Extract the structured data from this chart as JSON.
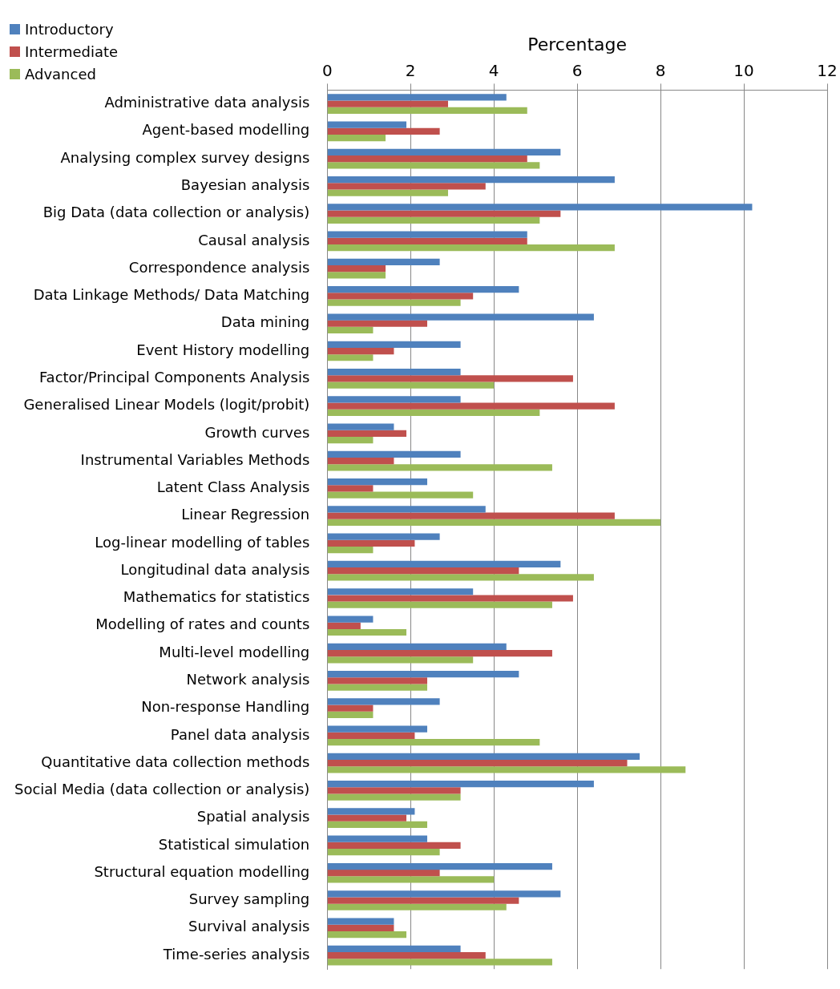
{
  "chart_data": {
    "type": "bar",
    "orientation": "horizontal",
    "xlabel": "Percentage",
    "legend": "top left",
    "grid": "x",
    "categories": [
      "Administrative data analysis",
      "Agent-based modelling",
      "Analysing complex survey designs",
      "Bayesian analysis",
      "Big Data (data collection or analysis)",
      "Causal analysis",
      "Correspondence analysis",
      "Data Linkage Methods/ Data Matching",
      "Data mining",
      "Event History modelling",
      "Factor/Principal Components Analysis",
      "Generalised Linear Models (logit/probit)",
      "Growth curves",
      "Instrumental Variables Methods",
      "Latent Class Analysis",
      "Linear Regression",
      "Log-linear modelling of tables",
      "Longitudinal data analysis",
      "Mathematics for statistics",
      "Modelling of rates and counts",
      "Multi-level modelling",
      "Network analysis",
      "Non-response Handling",
      "Panel data analysis",
      "Quantitative data collection methods",
      "Social Media (data collection or analysis)",
      "Spatial analysis",
      "Statistical simulation",
      "Structural equation modelling",
      "Survey sampling",
      "Survival analysis",
      "Time-series analysis"
    ],
    "series": [
      {
        "name": "Introductory",
        "color": "#4f81bd",
        "values": [
          4.3,
          1.9,
          5.6,
          6.9,
          10.2,
          4.8,
          2.7,
          4.6,
          6.4,
          3.2,
          3.2,
          3.2,
          1.6,
          3.2,
          2.4,
          3.8,
          2.7,
          5.6,
          3.5,
          1.1,
          4.3,
          4.6,
          2.7,
          2.4,
          7.5,
          6.4,
          2.1,
          2.4,
          5.4,
          5.6,
          1.6,
          3.2
        ]
      },
      {
        "name": "Intermediate",
        "color": "#c0504d",
        "values": [
          2.9,
          2.7,
          4.8,
          3.8,
          5.6,
          4.8,
          1.4,
          3.5,
          2.4,
          1.6,
          5.9,
          6.9,
          1.9,
          1.6,
          1.1,
          6.9,
          2.1,
          4.6,
          5.9,
          0.8,
          5.4,
          2.4,
          1.1,
          2.1,
          7.2,
          3.2,
          1.9,
          3.2,
          2.7,
          4.6,
          1.6,
          3.8
        ]
      },
      {
        "name": "Advanced",
        "color": "#9bbb59",
        "values": [
          4.8,
          1.4,
          5.1,
          2.9,
          5.1,
          6.9,
          1.4,
          3.2,
          1.1,
          1.1,
          4.0,
          5.1,
          1.1,
          5.4,
          3.5,
          8.0,
          1.1,
          6.4,
          5.4,
          1.9,
          3.5,
          2.4,
          1.1,
          5.1,
          8.6,
          3.2,
          2.4,
          2.7,
          4.0,
          4.3,
          1.9,
          5.4
        ]
      }
    ],
    "xlim": [
      0,
      12
    ],
    "xticks": [
      0,
      2,
      4,
      6,
      8,
      10,
      12
    ]
  }
}
